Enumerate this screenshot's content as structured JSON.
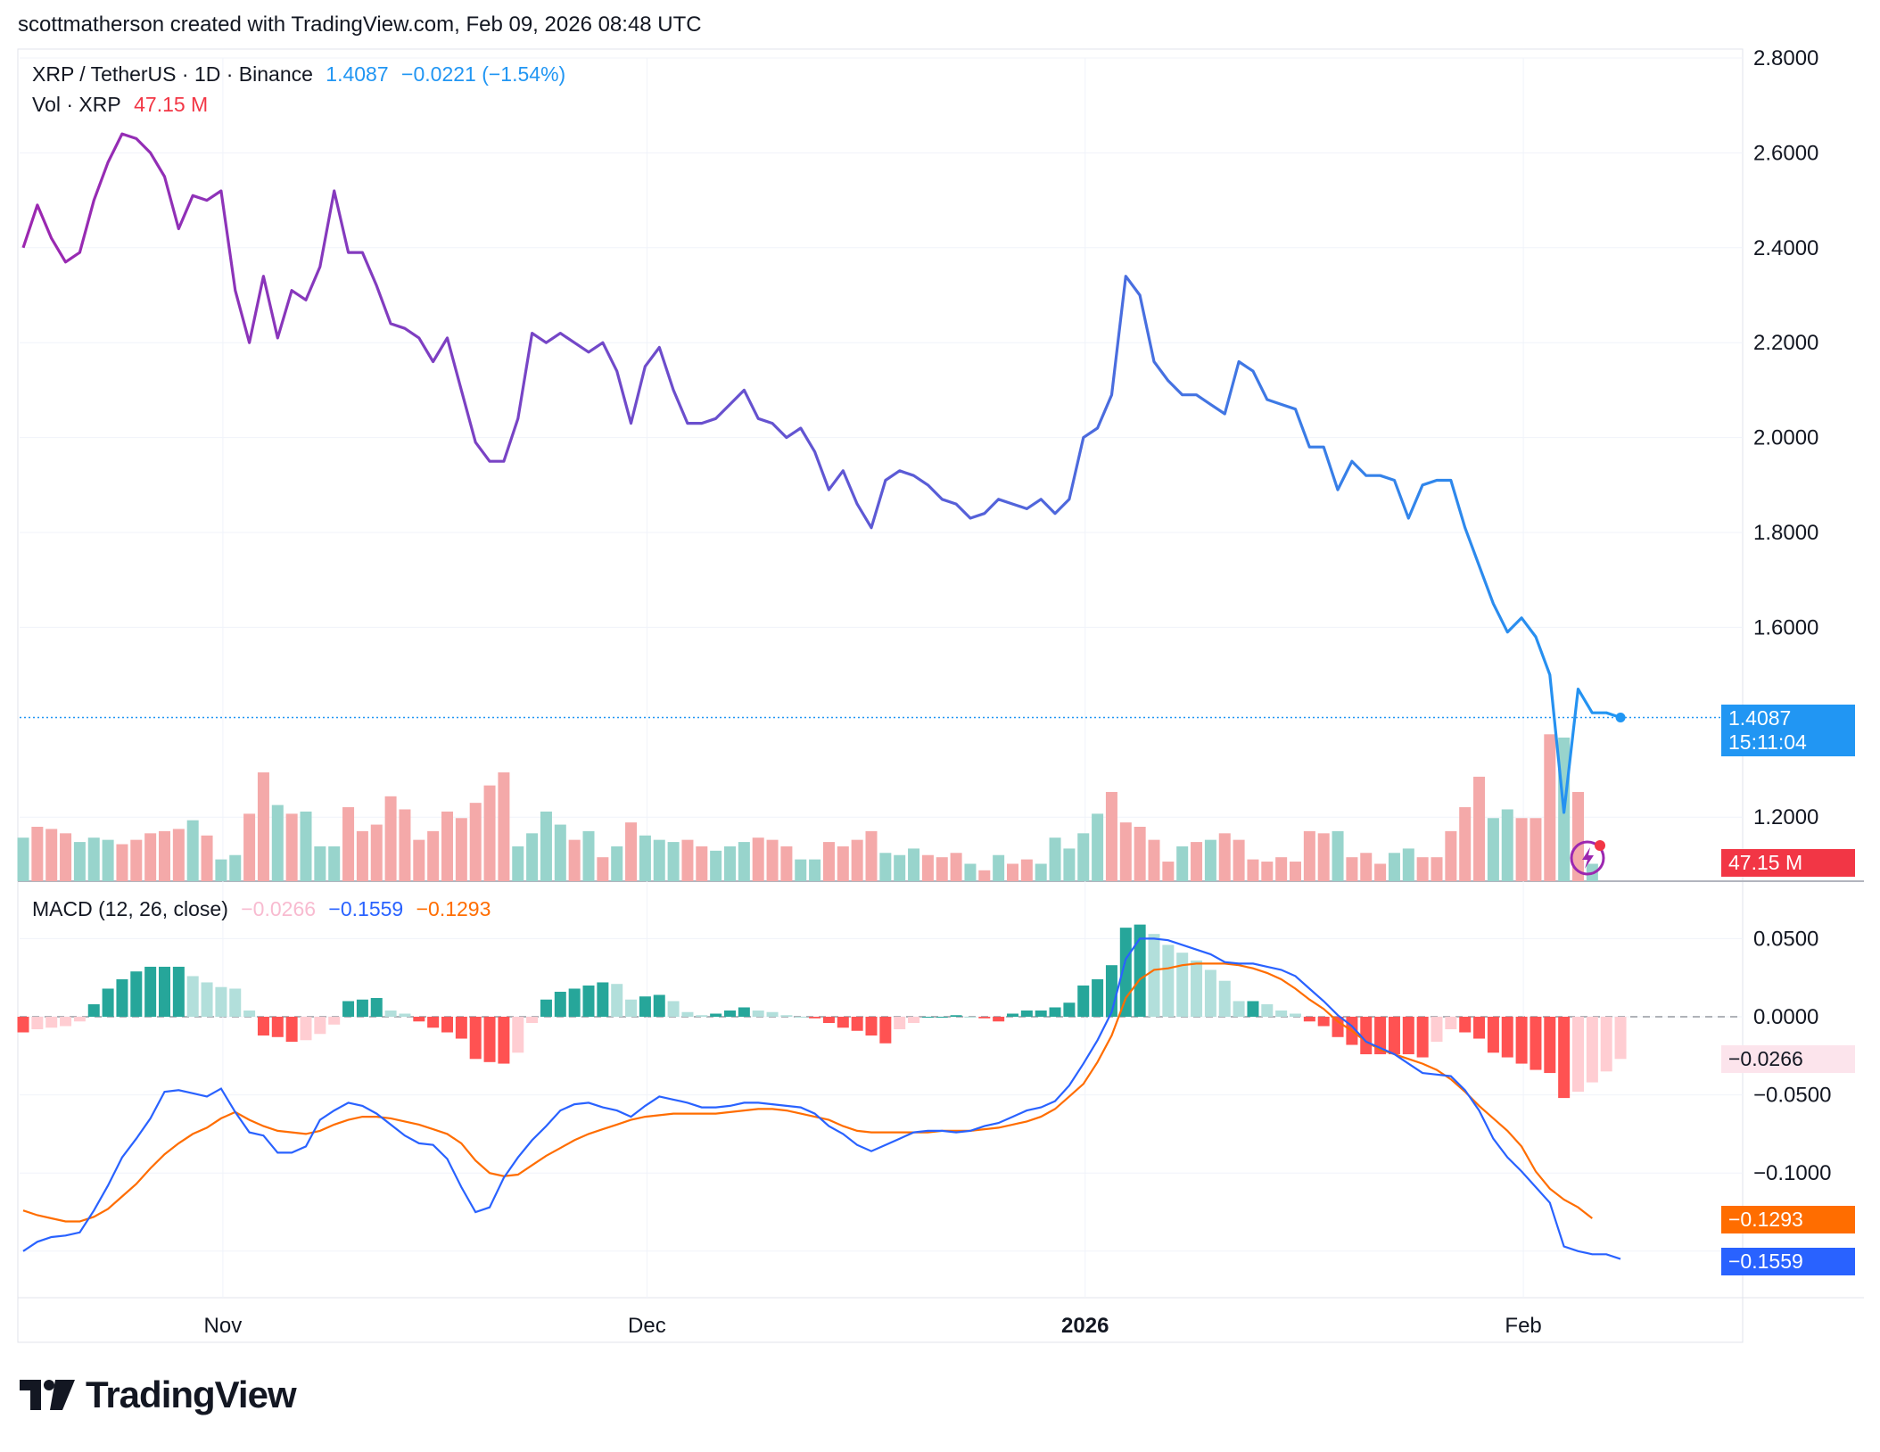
{
  "header": {
    "credit": "scottmatherson created with TradingView.com, Feb 09, 2026 08:48 UTC"
  },
  "legend": {
    "symbol": "XRP / TetherUS · 1D · Binance",
    "last_price": "1.4087",
    "change": "−0.0221 (−1.54%)",
    "vol_label": "Vol · XRP",
    "vol_value": "47.15 M",
    "macd_label": "MACD (12, 26, close)",
    "macd_hist": "−0.0266",
    "macd_line": "−0.1559",
    "macd_signal": "−0.1293"
  },
  "price_axis": {
    "labels": [
      "2.8000",
      "2.6000",
      "2.4000",
      "2.2000",
      "2.0000",
      "1.8000",
      "1.6000",
      "1.2000"
    ],
    "current_price": "1.4087",
    "countdown": "15:11:04",
    "volume_tag": "47.15 M"
  },
  "macd_axis": {
    "labels": [
      "0.0500",
      "0.0000",
      "−0.0500",
      "−0.1000"
    ],
    "hist_tag": "−0.0266",
    "signal_tag": "−0.1293",
    "macd_tag": "−0.1559"
  },
  "time_axis": {
    "labels": [
      "Nov",
      "Dec",
      "2026",
      "Feb"
    ]
  },
  "brand": {
    "name": "TradingView"
  },
  "colors": {
    "price_line_start": "#9c27b0",
    "price_line_end": "#2196f3",
    "vol_up": "#98d4cc",
    "vol_down": "#f4a9a9",
    "vol_up_strong": "#26a69a",
    "vol_down_strong": "#ef5350",
    "macd_line": "#2962ff",
    "signal_line": "#ff6d00",
    "last_price_tag": "#2196f3",
    "volume_tag": "#f23645"
  },
  "chart_data": {
    "type": "line",
    "title": "XRP / TetherUS · 1D · Binance",
    "price": {
      "ylim": [
        1.0,
        2.8
      ],
      "start_date": "2025-10-18",
      "close": [
        2.4,
        2.49,
        2.42,
        2.37,
        2.39,
        2.5,
        2.58,
        2.64,
        2.63,
        2.6,
        2.55,
        2.44,
        2.51,
        2.5,
        2.52,
        2.31,
        2.2,
        2.34,
        2.21,
        2.31,
        2.29,
        2.36,
        2.52,
        2.39,
        2.39,
        2.32,
        2.24,
        2.23,
        2.21,
        2.16,
        2.21,
        2.1,
        1.99,
        1.95,
        1.95,
        2.04,
        2.22,
        2.2,
        2.22,
        2.2,
        2.18,
        2.2,
        2.14,
        2.03,
        2.15,
        2.19,
        2.1,
        2.03,
        2.03,
        2.04,
        2.07,
        2.1,
        2.04,
        2.03,
        2.0,
        2.02,
        1.97,
        1.89,
        1.93,
        1.86,
        1.81,
        1.91,
        1.93,
        1.92,
        1.9,
        1.87,
        1.86,
        1.83,
        1.84,
        1.87,
        1.86,
        1.85,
        1.87,
        1.84,
        1.87,
        2.0,
        2.02,
        2.09,
        2.34,
        2.3,
        2.16,
        2.12,
        2.09,
        2.09,
        2.07,
        2.05,
        2.16,
        2.14,
        2.08,
        2.07,
        2.06,
        1.98,
        1.98,
        1.89,
        1.95,
        1.92,
        1.92,
        1.91,
        1.83,
        1.9,
        1.91,
        1.91,
        1.81,
        1.73,
        1.65,
        1.59,
        1.62,
        1.58,
        1.5,
        1.21,
        1.47,
        1.42,
        1.42,
        1.41
      ],
      "volume_relative": [
        0.4,
        0.5,
        0.48,
        0.44,
        0.36,
        0.4,
        0.38,
        0.34,
        0.38,
        0.44,
        0.46,
        0.48,
        0.56,
        0.42,
        0.2,
        0.24,
        0.62,
        1.0,
        0.7,
        0.62,
        0.64,
        0.32,
        0.32,
        0.68,
        0.46,
        0.52,
        0.78,
        0.66,
        0.38,
        0.46,
        0.64,
        0.58,
        0.72,
        0.88,
        1.0,
        0.32,
        0.44,
        0.64,
        0.52,
        0.38,
        0.46,
        0.22,
        0.32,
        0.54,
        0.42,
        0.38,
        0.36,
        0.38,
        0.32,
        0.28,
        0.32,
        0.36,
        0.4,
        0.38,
        0.32,
        0.2,
        0.2,
        0.36,
        0.32,
        0.38,
        0.46,
        0.26,
        0.24,
        0.3,
        0.24,
        0.22,
        0.26,
        0.16,
        0.1,
        0.24,
        0.16,
        0.2,
        0.16,
        0.4,
        0.3,
        0.44,
        0.62,
        0.82,
        0.54,
        0.5,
        0.38,
        0.18,
        0.32,
        0.36,
        0.38,
        0.44,
        0.38,
        0.2,
        0.18,
        0.22,
        0.18,
        0.46,
        0.44,
        0.46,
        0.22,
        0.26,
        0.16,
        0.26,
        0.3,
        0.22,
        0.22,
        0.46,
        0.68,
        0.96,
        0.58,
        0.66,
        0.58,
        0.58,
        1.35,
        1.32,
        0.82,
        0.16
      ],
      "volume_up": [
        true,
        false,
        false,
        false,
        true,
        true,
        true,
        false,
        false,
        false,
        false,
        false,
        true,
        false,
        true,
        true,
        false,
        false,
        true,
        false,
        true,
        true,
        true,
        false,
        false,
        false,
        false,
        false,
        false,
        false,
        false,
        false,
        false,
        false,
        false,
        true,
        true,
        true,
        true,
        false,
        true,
        false,
        true,
        false,
        true,
        true,
        true,
        false,
        false,
        true,
        true,
        true,
        false,
        false,
        false,
        true,
        true,
        false,
        false,
        false,
        false,
        true,
        true,
        true,
        false,
        false,
        false,
        true,
        false,
        true,
        false,
        false,
        true,
        true,
        true,
        true,
        true,
        false,
        false,
        false,
        false,
        false,
        true,
        false,
        true,
        false,
        false,
        false,
        false,
        false,
        false,
        false,
        false,
        true,
        false,
        false,
        false,
        true,
        true,
        false,
        false,
        false,
        false,
        false,
        true,
        true,
        false,
        false,
        false,
        true,
        false,
        true
      ]
    },
    "macd": {
      "ylim": [
        -0.17,
        0.065
      ],
      "macd_line": [
        -0.15,
        -0.144,
        -0.141,
        -0.14,
        -0.138,
        -0.124,
        -0.108,
        -0.09,
        -0.078,
        -0.065,
        -0.048,
        -0.047,
        -0.049,
        -0.051,
        -0.046,
        -0.061,
        -0.074,
        -0.076,
        -0.087,
        -0.087,
        -0.083,
        -0.066,
        -0.06,
        -0.055,
        -0.057,
        -0.062,
        -0.069,
        -0.076,
        -0.081,
        -0.082,
        -0.091,
        -0.109,
        -0.125,
        -0.122,
        -0.103,
        -0.09,
        -0.079,
        -0.07,
        -0.06,
        -0.056,
        -0.055,
        -0.058,
        -0.06,
        -0.064,
        -0.057,
        -0.051,
        -0.053,
        -0.055,
        -0.058,
        -0.058,
        -0.057,
        -0.055,
        -0.055,
        -0.056,
        -0.057,
        -0.058,
        -0.062,
        -0.07,
        -0.075,
        -0.082,
        -0.086,
        -0.082,
        -0.078,
        -0.074,
        -0.073,
        -0.073,
        -0.074,
        -0.073,
        -0.07,
        -0.068,
        -0.064,
        -0.06,
        -0.058,
        -0.054,
        -0.044,
        -0.03,
        -0.015,
        0.003,
        0.037,
        0.05,
        0.05,
        0.049,
        0.046,
        0.043,
        0.04,
        0.035,
        0.034,
        0.034,
        0.032,
        0.03,
        0.026,
        0.018,
        0.01,
        0.001,
        -0.006,
        -0.016,
        -0.02,
        -0.024,
        -0.03,
        -0.036,
        -0.037,
        -0.038,
        -0.047,
        -0.06,
        -0.078,
        -0.09,
        -0.099,
        -0.109,
        -0.119,
        -0.147,
        -0.15,
        -0.152,
        -0.152,
        -0.155
      ],
      "signal_line": [
        -0.124,
        -0.127,
        -0.129,
        -0.131,
        -0.131,
        -0.128,
        -0.123,
        -0.115,
        -0.107,
        -0.097,
        -0.088,
        -0.081,
        -0.075,
        -0.071,
        -0.065,
        -0.061,
        -0.066,
        -0.07,
        -0.073,
        -0.074,
        -0.075,
        -0.073,
        -0.069,
        -0.066,
        -0.064,
        -0.064,
        -0.065,
        -0.067,
        -0.069,
        -0.072,
        -0.075,
        -0.081,
        -0.092,
        -0.1,
        -0.102,
        -0.101,
        -0.095,
        -0.089,
        -0.084,
        -0.079,
        -0.075,
        -0.072,
        -0.069,
        -0.066,
        -0.064,
        -0.063,
        -0.062,
        -0.062,
        -0.062,
        -0.062,
        -0.061,
        -0.06,
        -0.059,
        -0.059,
        -0.06,
        -0.062,
        -0.064,
        -0.066,
        -0.07,
        -0.073,
        -0.074,
        -0.074,
        -0.074,
        -0.074,
        -0.074,
        -0.073,
        -0.073,
        -0.073,
        -0.072,
        -0.071,
        -0.069,
        -0.067,
        -0.064,
        -0.059,
        -0.051,
        -0.043,
        -0.029,
        -0.012,
        0.012,
        0.024,
        0.03,
        0.031,
        0.033,
        0.034,
        0.034,
        0.034,
        0.033,
        0.031,
        0.028,
        0.024,
        0.018,
        0.011,
        0.005,
        -0.003,
        -0.009,
        -0.016,
        -0.021,
        -0.024,
        -0.027,
        -0.03,
        -0.034,
        -0.04,
        -0.048,
        -0.057,
        -0.065,
        -0.073,
        -0.083,
        -0.099,
        -0.11,
        -0.117,
        -0.122,
        -0.129
      ],
      "histogram": [
        -0.01,
        -0.008,
        -0.007,
        -0.006,
        -0.003,
        0.008,
        0.018,
        0.024,
        0.029,
        0.032,
        0.032,
        0.032,
        0.026,
        0.022,
        0.019,
        0.018,
        0.004,
        -0.012,
        -0.013,
        -0.016,
        -0.015,
        -0.011,
        -0.005,
        0.01,
        0.011,
        0.012,
        0.004,
        0.002,
        -0.003,
        -0.007,
        -0.01,
        -0.014,
        -0.027,
        -0.029,
        -0.03,
        -0.023,
        -0.004,
        0.011,
        0.016,
        0.018,
        0.02,
        0.022,
        0.021,
        0.011,
        0.013,
        0.014,
        0.01,
        0.003,
        0.001,
        0.002,
        0.004,
        0.006,
        0.004,
        0.003,
        0.001,
        0.0,
        -0.001,
        -0.004,
        -0.007,
        -0.009,
        -0.012,
        -0.017,
        -0.008,
        -0.004,
        0.0,
        0.0,
        0.001,
        0.0,
        -0.001,
        -0.003,
        0.002,
        0.004,
        0.004,
        0.006,
        0.009,
        0.02,
        0.024,
        0.033,
        0.057,
        0.059,
        0.053,
        0.046,
        0.041,
        0.036,
        0.03,
        0.023,
        0.01,
        0.01,
        0.008,
        0.004,
        0.002,
        -0.003,
        -0.006,
        -0.013,
        -0.018,
        -0.024,
        -0.024,
        -0.024,
        -0.024,
        -0.026,
        -0.016,
        -0.008,
        -0.01,
        -0.014,
        -0.023,
        -0.026,
        -0.03,
        -0.034,
        -0.036,
        -0.052,
        -0.048,
        -0.042,
        -0.035,
        -0.027
      ]
    }
  }
}
